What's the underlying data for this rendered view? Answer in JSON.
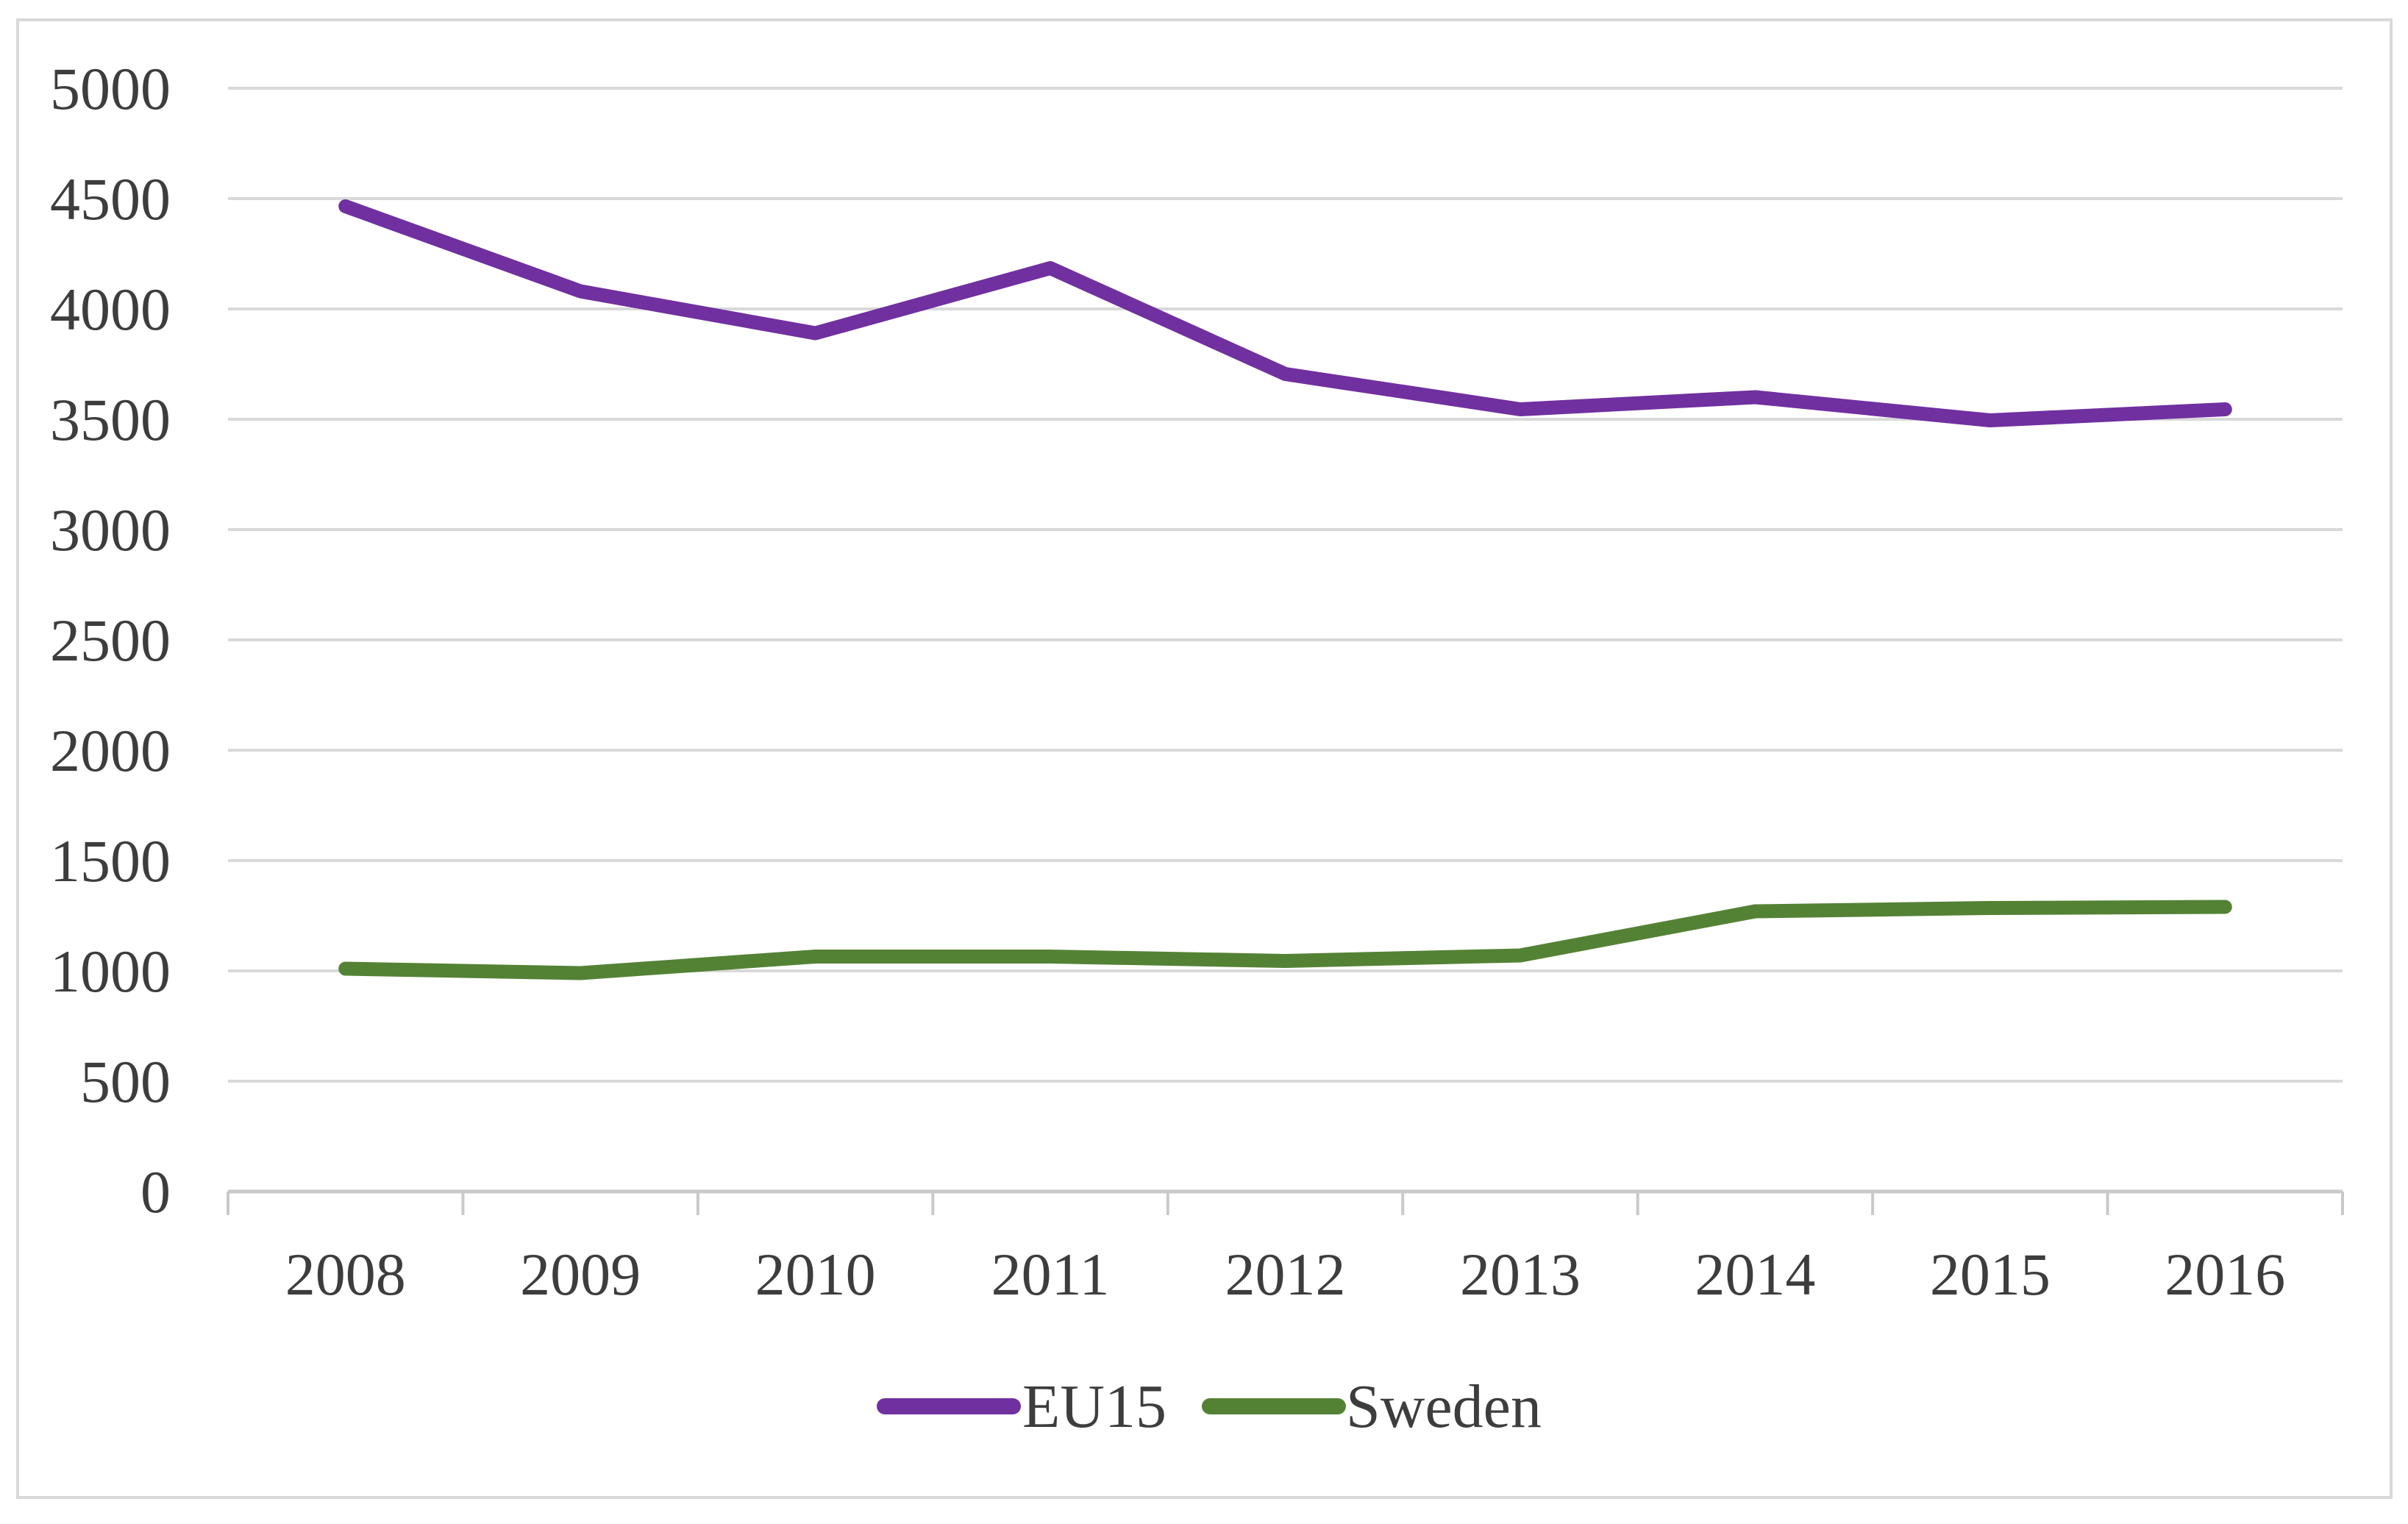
{
  "figure": {
    "background": "#ffffff",
    "border_color": "#d9d9d9",
    "tick_label_color": "#3d3d3d",
    "gridline_color": "#d9d9d9",
    "axis_line_color": "#c9c9c9"
  },
  "chart_data": {
    "type": "line",
    "title": "",
    "xlabel": "",
    "ylabel": "",
    "categories": [
      "2008",
      "2009",
      "2010",
      "2011",
      "2012",
      "2013",
      "2014",
      "2015",
      "2016"
    ],
    "series": [
      {
        "name": "EU15",
        "color": "#7030A0",
        "values": [
          4465,
          4080,
          3890,
          4185,
          3705,
          3545,
          3600,
          3495,
          3545
        ]
      },
      {
        "name": "Sweden",
        "color": "#548235",
        "values": [
          1010,
          990,
          1065,
          1065,
          1045,
          1070,
          1270,
          1285,
          1290
        ]
      }
    ],
    "ylim": [
      0,
      5000
    ],
    "ytick_step": 500,
    "ytick_labels": [
      "0",
      "500",
      "1000",
      "1500",
      "2000",
      "2500",
      "3000",
      "3500",
      "4000",
      "4500",
      "5000"
    ],
    "grid": "horizontal",
    "legend_position": "bottom"
  }
}
